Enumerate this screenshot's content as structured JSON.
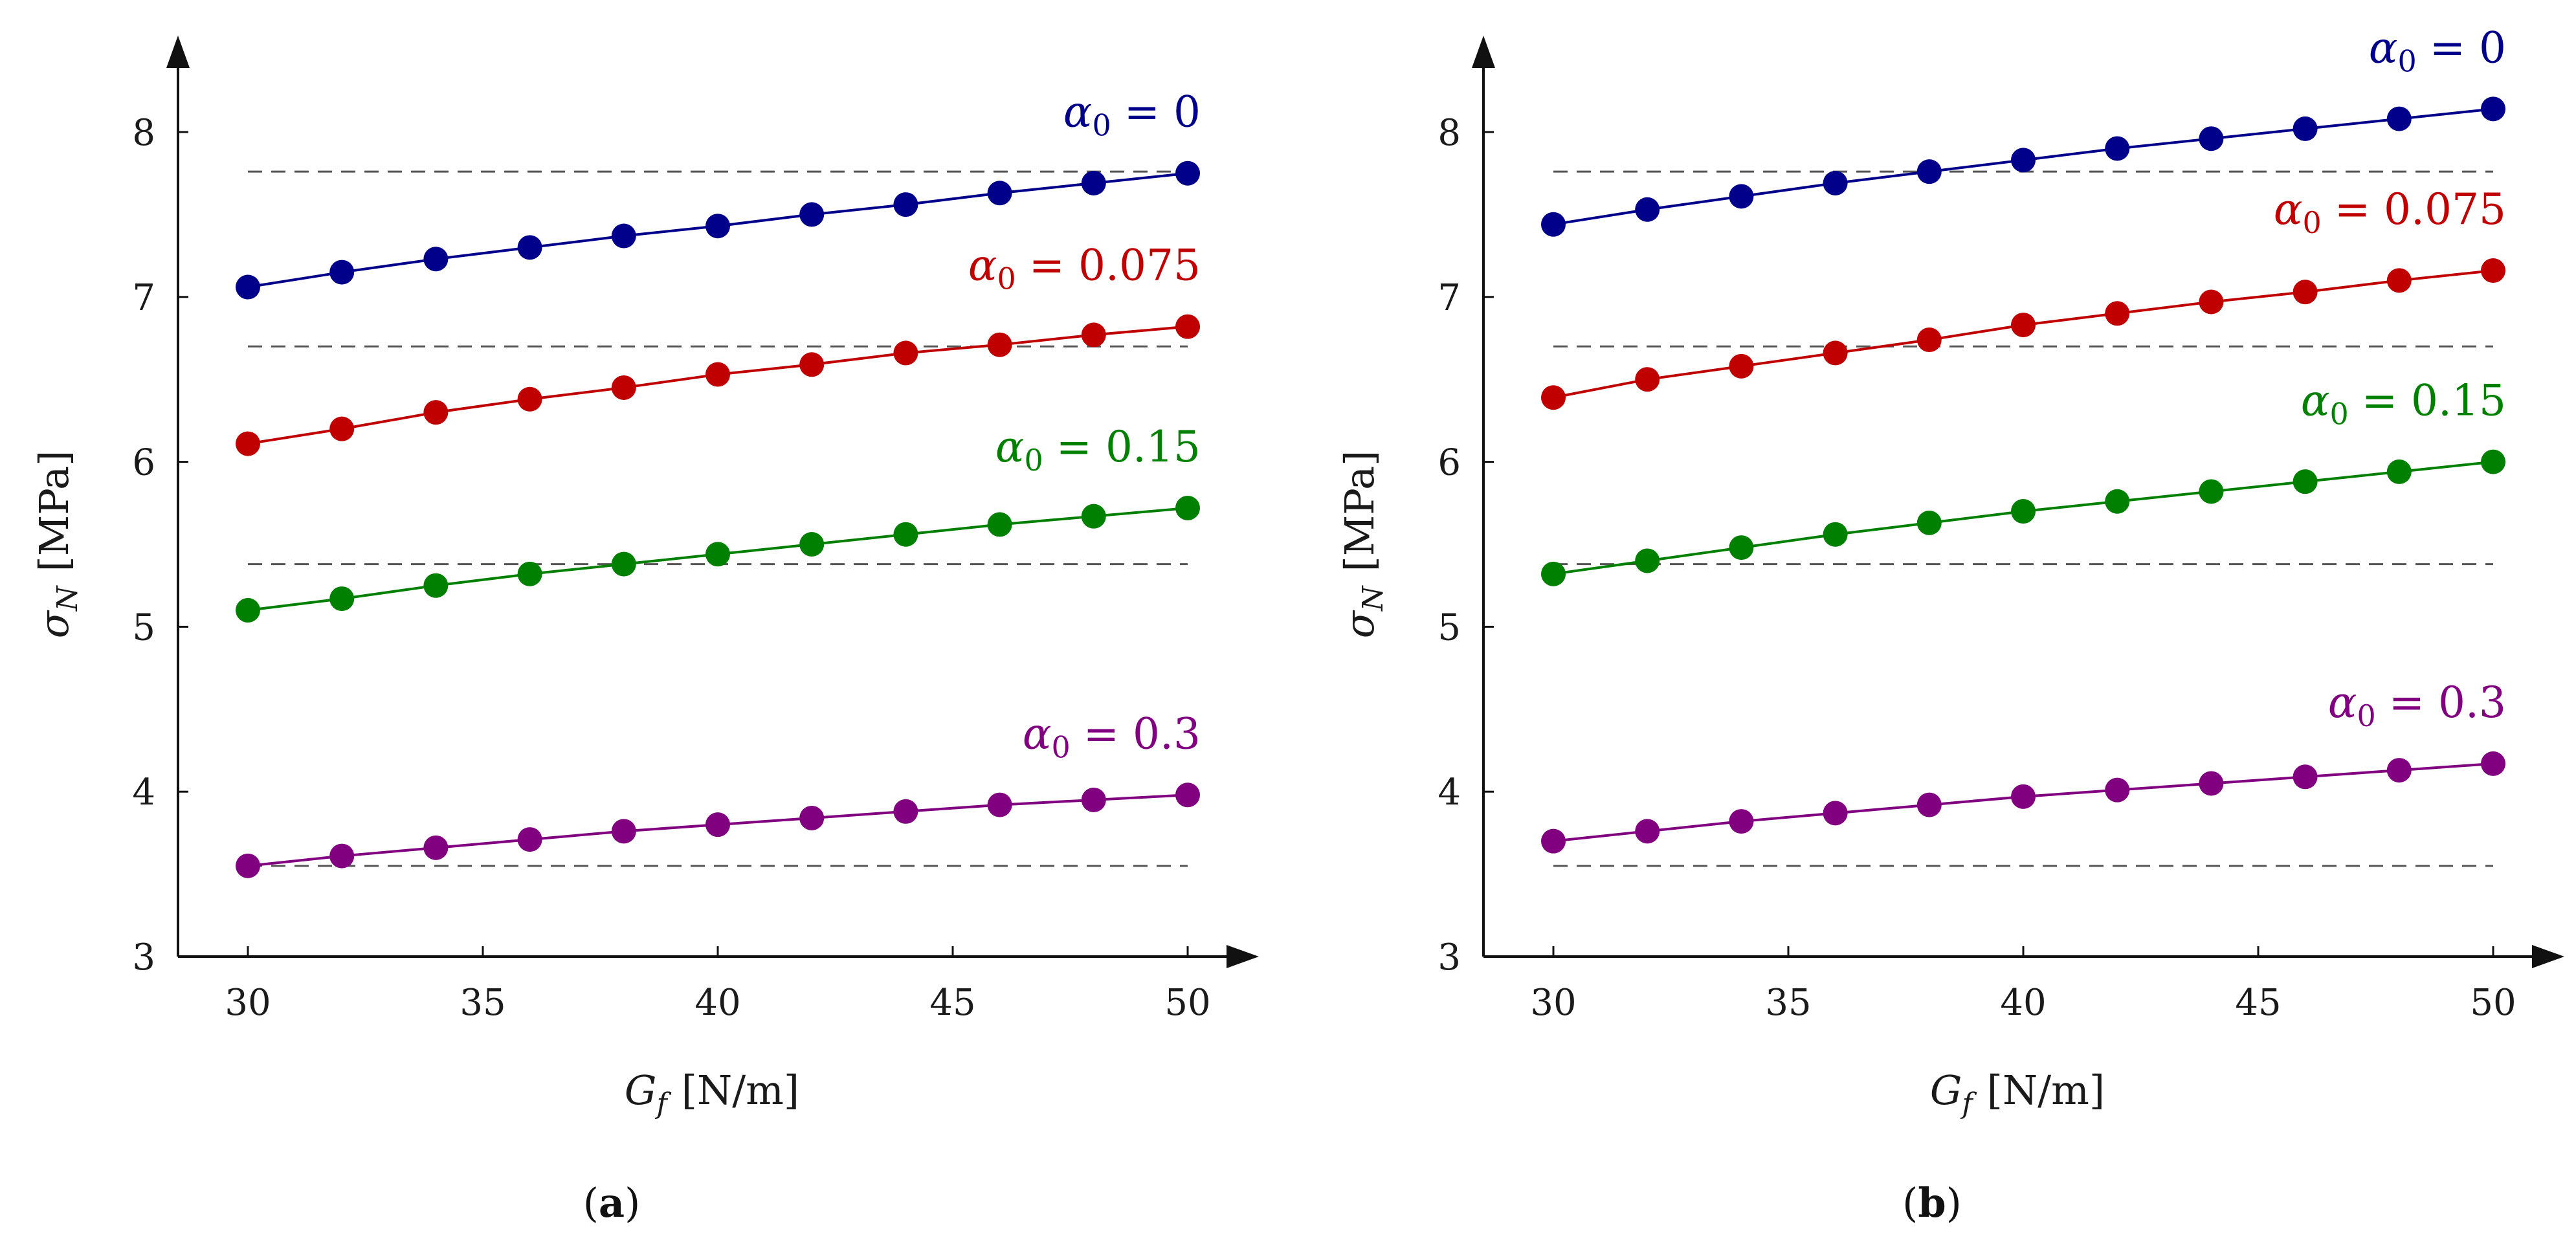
{
  "chart_data": [
    {
      "type": "line",
      "panel": "(a)",
      "panel_letter": "a",
      "xlabel": "G_f [N/m]",
      "ylabel": "σ_N [MPa]",
      "xlim": [
        28.5,
        51.5
      ],
      "ylim": [
        3,
        8.5
      ],
      "xticks": [
        30,
        35,
        40,
        45,
        50
      ],
      "yticks": [
        3,
        4,
        5,
        6,
        7,
        8
      ],
      "x": [
        30,
        32,
        34,
        36,
        38,
        40,
        42,
        44,
        46,
        48,
        50
      ],
      "series": [
        {
          "name": "α0 = 0",
          "color": "#00008b",
          "values": [
            7.06,
            7.15,
            7.23,
            7.3,
            7.37,
            7.43,
            7.5,
            7.56,
            7.63,
            7.69,
            7.75
          ]
        },
        {
          "name": "α0 = 0.075",
          "color": "#c00000",
          "values": [
            6.11,
            6.2,
            6.3,
            6.38,
            6.45,
            6.53,
            6.59,
            6.66,
            6.71,
            6.77,
            6.82
          ]
        },
        {
          "name": "α0 = 0.15",
          "color": "#008000",
          "values": [
            5.1,
            5.17,
            5.25,
            5.32,
            5.38,
            5.44,
            5.5,
            5.56,
            5.62,
            5.67,
            5.72
          ]
        },
        {
          "name": "α0 = 0.3",
          "color": "#800080",
          "values": [
            3.55,
            3.61,
            3.66,
            3.71,
            3.76,
            3.8,
            3.84,
            3.88,
            3.92,
            3.95,
            3.98
          ]
        }
      ],
      "reference_lines": [
        7.76,
        6.7,
        5.38,
        3.55
      ],
      "reference_style": "dashed gray"
    },
    {
      "type": "line",
      "panel": "(b)",
      "panel_letter": "b",
      "xlabel": "G_f [N/m]",
      "ylabel": "σ_N [MPa]",
      "xlim": [
        28.5,
        51.5
      ],
      "ylim": [
        3,
        8.5
      ],
      "xticks": [
        30,
        35,
        40,
        45,
        50
      ],
      "yticks": [
        3,
        4,
        5,
        6,
        7,
        8
      ],
      "x": [
        30,
        32,
        34,
        36,
        38,
        40,
        42,
        44,
        46,
        48,
        50
      ],
      "series": [
        {
          "name": "α0 = 0",
          "color": "#00008b",
          "values": [
            7.44,
            7.53,
            7.61,
            7.69,
            7.76,
            7.83,
            7.9,
            7.96,
            8.02,
            8.08,
            8.14
          ]
        },
        {
          "name": "α0 = 0.075",
          "color": "#c00000",
          "values": [
            6.39,
            6.5,
            6.58,
            6.66,
            6.74,
            6.83,
            6.9,
            6.97,
            7.03,
            7.1,
            7.16
          ]
        },
        {
          "name": "α0 = 0.15",
          "color": "#008000",
          "values": [
            5.32,
            5.4,
            5.48,
            5.56,
            5.63,
            5.7,
            5.76,
            5.82,
            5.88,
            5.94,
            6.0
          ]
        },
        {
          "name": "α0 = 0.3",
          "color": "#800080",
          "values": [
            3.7,
            3.76,
            3.82,
            3.87,
            3.92,
            3.97,
            4.01,
            4.05,
            4.09,
            4.13,
            4.17
          ]
        }
      ],
      "reference_lines": [
        7.76,
        6.7,
        5.38,
        3.55
      ],
      "reference_style": "dashed gray"
    }
  ]
}
